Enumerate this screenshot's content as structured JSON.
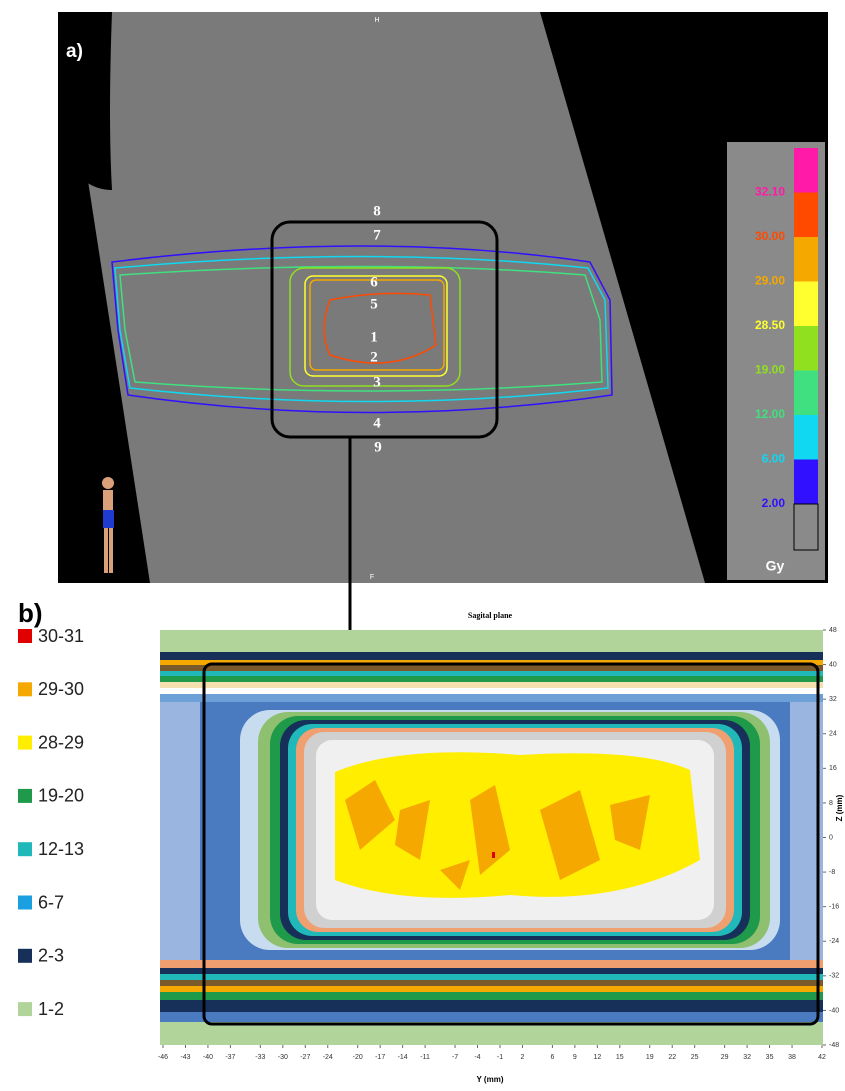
{
  "panel_a": {
    "label": "a)",
    "orientation_top": "H",
    "orientation_bottom": "F",
    "contour_numbers": [
      "8",
      "7",
      "6",
      "5",
      "1",
      "2",
      "3",
      "4",
      "9"
    ],
    "colorbar": {
      "levels": [
        {
          "label": "32.10",
          "color": "#ff1aa8"
        },
        {
          "label": "30.00",
          "color": "#ff4a00"
        },
        {
          "label": "29.00",
          "color": "#f5a800"
        },
        {
          "label": "28.50",
          "color": "#ffff30"
        },
        {
          "label": "19.00",
          "color": "#90e020"
        },
        {
          "label": "12.00",
          "color": "#40e080"
        },
        {
          "label": "6.00",
          "color": "#10d8f0"
        },
        {
          "label": "2.00",
          "color": "#3010ff"
        }
      ],
      "unit": "Gy"
    }
  },
  "panel_b": {
    "label": "b)",
    "title": "Sagital plane",
    "xlabel": "Y (mm)",
    "ylabel": "Z (mm)",
    "legend": [
      {
        "label": "30-31",
        "color": "#e00000"
      },
      {
        "label": "29-30",
        "color": "#f5a800"
      },
      {
        "label": "28-29",
        "color": "#ffee00"
      },
      {
        "label": "19-20",
        "color": "#1e9a4a"
      },
      {
        "label": "12-13",
        "color": "#20b8b8"
      },
      {
        "label": "6-7",
        "color": "#1aa0e0"
      },
      {
        "label": "2-3",
        "color": "#16305a"
      },
      {
        "label": "1-2",
        "color": "#b0d49a"
      }
    ],
    "xlim": [
      -46,
      42
    ],
    "xticks": [
      -46,
      -43,
      -40,
      -37,
      -33,
      -30,
      -27,
      -24,
      -20,
      -17,
      -14,
      -11,
      -7,
      -4,
      -1,
      2,
      6,
      9,
      12,
      15,
      19,
      22,
      25,
      29,
      32,
      35,
      38,
      42
    ],
    "ylim": [
      -48,
      48
    ],
    "yticks": [
      48,
      40,
      32,
      24,
      16,
      8,
      0,
      -8,
      -16,
      -24,
      -32,
      -40,
      -48
    ]
  }
}
